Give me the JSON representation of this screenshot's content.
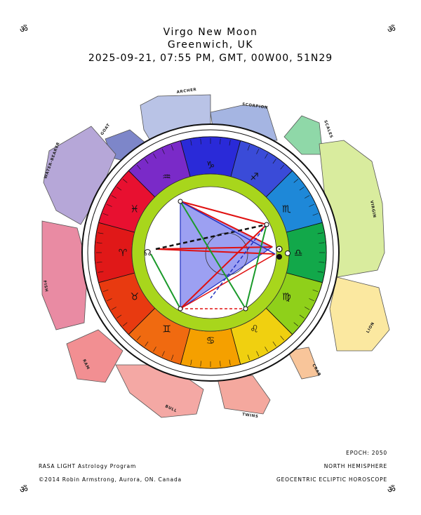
{
  "header": {
    "title": "Virgo New Moon",
    "location": "Greenwich, UK",
    "datetime": "2025-09-21, 07:55 PM, GMT,  00W00, 51N29"
  },
  "om_symbol": "ॐ",
  "footer": {
    "program": "RASA LIGHT Astrology Program",
    "copyright": "©2014 Robin Armstrong, Aurora, ON. Canada",
    "epoch": "EPOCH: 2050",
    "hemisphere": "NORTH HEMISPHERE",
    "horoscope_type": "GEOCENTRIC ECLIPTIC HOROSCOPE"
  },
  "constellations": {
    "archer": "ARCHER",
    "scorpion": "SCORPION",
    "scales": "SCALES",
    "virgin": "VIRGIN",
    "lion": "LION",
    "crab": "CRAB",
    "twins": "TWINS",
    "bull": "BULL",
    "ram": "RAM",
    "fish": "FISH",
    "water_bearer": "WATER-BEARER",
    "goat": "GOAT"
  },
  "sign_glyphs": [
    "♑",
    "♐",
    "♏",
    "♎",
    "♍",
    "♌",
    "♋",
    "♊",
    "♉",
    "♈",
    "♓",
    "♒"
  ],
  "planet_glyphs": {
    "sun": "☉",
    "moon": "☽",
    "north_node": "☊",
    "south_node": "☋"
  },
  "colors": {
    "wheel_outer": "#1a1a1a",
    "ring_green": "#a8d61c",
    "triangle_fill": "#8b8ff0",
    "aspect_red": "#e01010",
    "aspect_green": "#1a9a2a",
    "aspect_blue": "#2030c0"
  }
}
